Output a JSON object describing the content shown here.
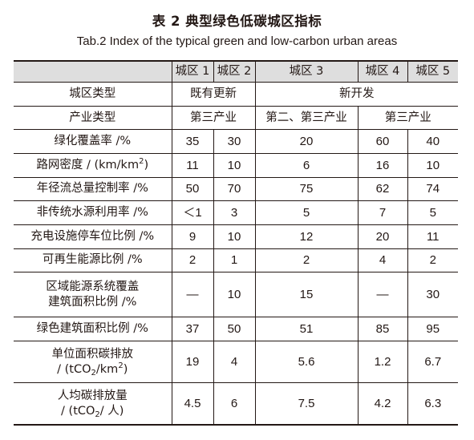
{
  "title_cn": "表 2   典型绿色低碳城区指标",
  "title_en": "Tab.2 Index of the typical green and low-carbon urban areas",
  "header": {
    "blank": "",
    "districts": [
      "城区 1",
      "城区 2",
      "城区 3",
      "城区 4",
      "城区 5"
    ]
  },
  "type_row": {
    "label": "城区类型",
    "existing": "既有更新",
    "new": "新开发"
  },
  "industry_row": {
    "label": "产业类型",
    "a": "第三产业",
    "b": "第二、第三产业",
    "c": "第三产业"
  },
  "rows": [
    {
      "label_html": "绿化覆盖率 /%",
      "values": [
        "35",
        "30",
        "20",
        "60",
        "40"
      ]
    },
    {
      "label_html": "路网密度 / (km/km<sup>2</sup>)",
      "values": [
        "11",
        "10",
        "6",
        "16",
        "10"
      ]
    },
    {
      "label_html": "年径流总量控制率 /%",
      "values": [
        "50",
        "70",
        "75",
        "62",
        "74"
      ]
    },
    {
      "label_html": "非传统水源利用率 /%",
      "values": [
        "＜1",
        "3",
        "5",
        "7",
        "5"
      ]
    },
    {
      "label_html": "充电设施停车位比例 /%",
      "values": [
        "9",
        "10",
        "12",
        "20",
        "11"
      ]
    },
    {
      "label_html": "可再生能源比例 /%",
      "values": [
        "2",
        "1",
        "2",
        "4",
        "2"
      ]
    },
    {
      "label_html": "区域能源系统覆盖<br>建筑面积比例 /%",
      "values": [
        "—",
        "10",
        "15",
        "—",
        "30"
      ]
    },
    {
      "label_html": "绿色建筑面积比例 /%",
      "values": [
        "37",
        "50",
        "51",
        "85",
        "95"
      ]
    },
    {
      "label_html": "单位面积碳排放<br>/ (tCO<sub>2</sub>/km<sup>2</sup>)",
      "values": [
        "19",
        "4",
        "5.6",
        "1.2",
        "6.7"
      ]
    },
    {
      "label_html": "人均碳排放量<br>/ (tCO<sub>2</sub>/ 人)",
      "values": [
        "4.5",
        "6",
        "7.5",
        "4.2",
        "6.3"
      ]
    }
  ]
}
